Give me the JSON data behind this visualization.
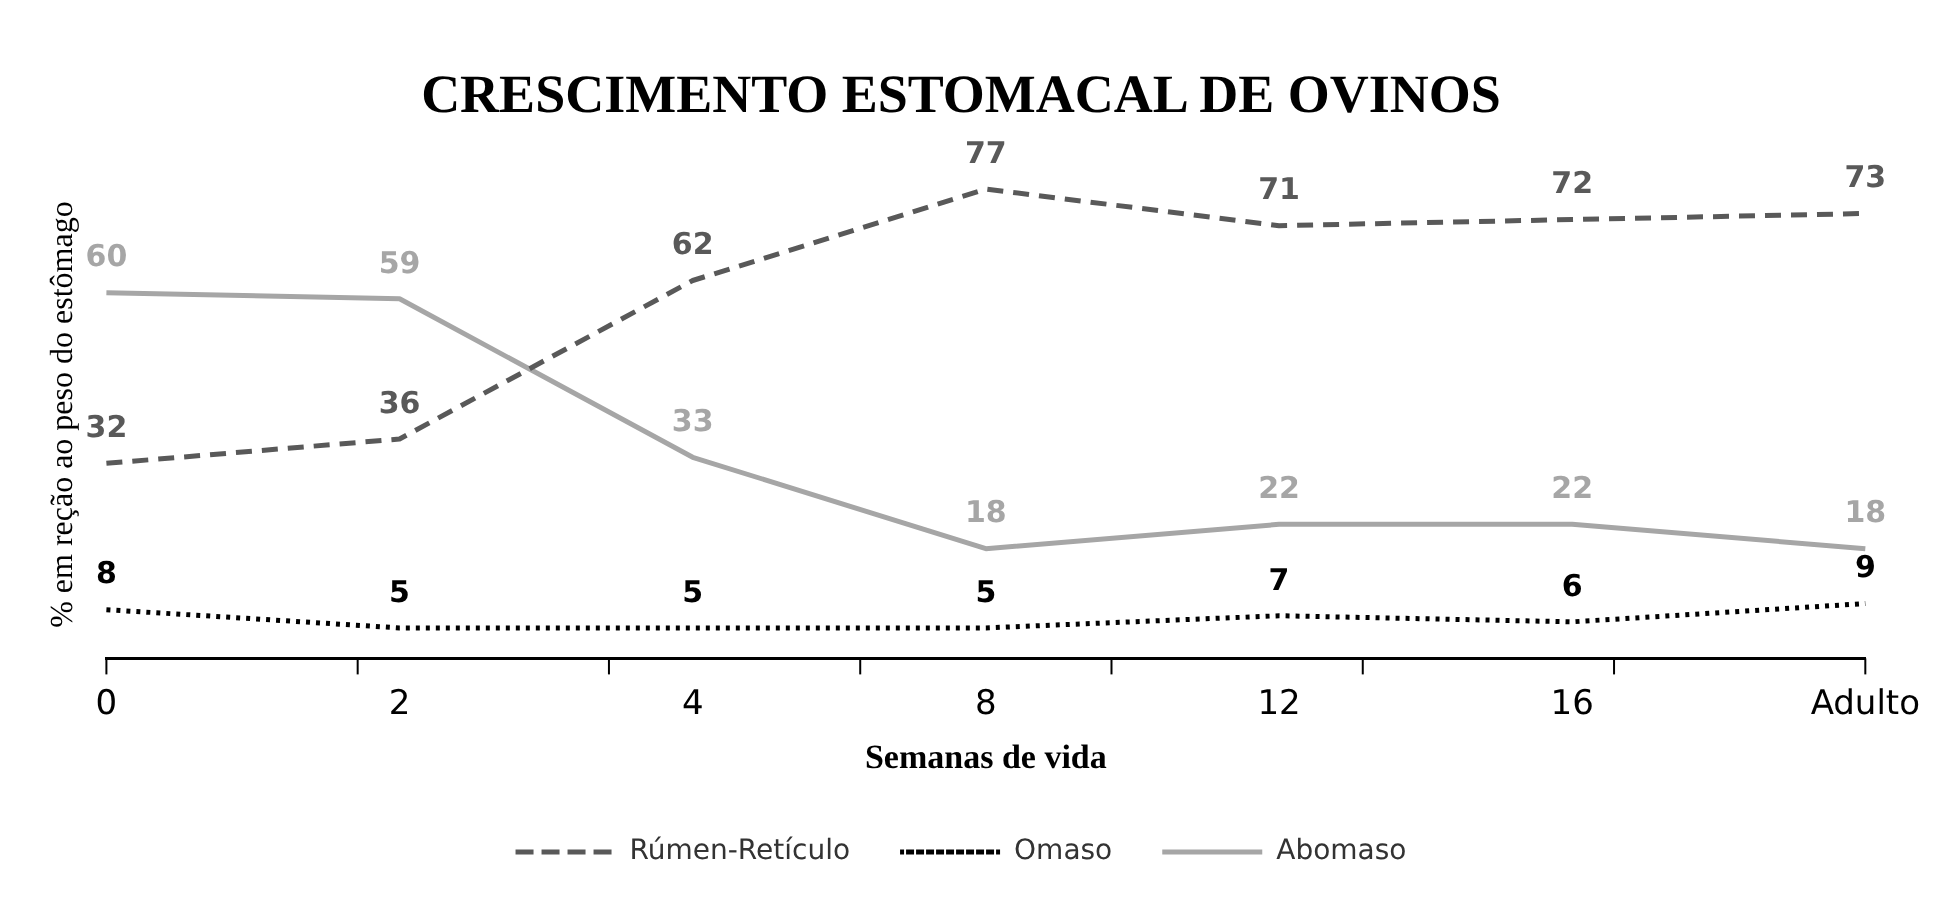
{
  "chart_data": {
    "type": "line",
    "title": "CRESCIMENTO ESTOMACAL DE OVINOS",
    "xlabel": "Semanas de vida",
    "ylabel": "% em reção ao peso do estômago",
    "categories": [
      "0",
      "2",
      "4",
      "8",
      "12",
      "16",
      "Adulto"
    ],
    "series": [
      {
        "name": "Rúmen-Retículo",
        "color": "#595959",
        "line_style": "dashed",
        "values": [
          32,
          36,
          62,
          77,
          71,
          72,
          73
        ]
      },
      {
        "name": "Omaso",
        "color": "#000000",
        "line_style": "dotted",
        "values": [
          8,
          5,
          5,
          5,
          7,
          6,
          9
        ]
      },
      {
        "name": "Abomaso",
        "color": "#a6a6a6",
        "line_style": "solid",
        "values": [
          60,
          59,
          33,
          18,
          22,
          22,
          18
        ]
      }
    ],
    "data_labels": true,
    "legend": "bottom",
    "grid": false,
    "marker": "none"
  }
}
